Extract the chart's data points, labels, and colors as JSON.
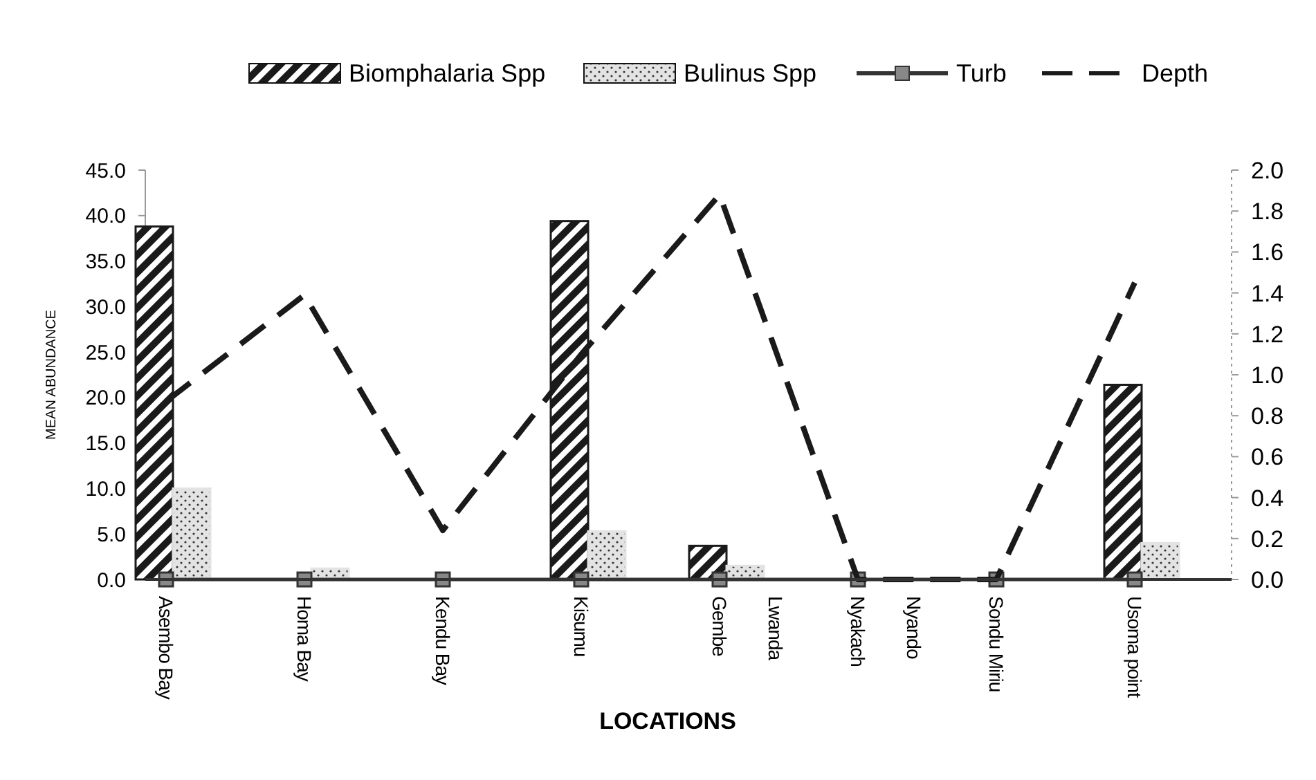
{
  "chart_data": {
    "type": "bar",
    "xlabel": "LOCATIONS",
    "ylabel": "MEAN ABUNDANCE",
    "categories": [
      "Asembo Bay",
      "Homa Bay",
      "Kendu Bay",
      "Kisumu",
      "Gembe\nLwanda",
      "Nyakach\nNyando",
      "Sondu Miriu",
      "Usoma point"
    ],
    "series": [
      {
        "name": "Biomphalaria Spp",
        "color": "#1a1a1a",
        "values": [
          38.8,
          0,
          0,
          39.4,
          3.7,
          0,
          0,
          21.4
        ]
      },
      {
        "name": "Bulinus Spp",
        "color": "#e3e3e3",
        "values": [
          10.0,
          1.2,
          0,
          5.3,
          1.5,
          0,
          0,
          4.0
        ]
      },
      {
        "name": "Turb",
        "type": "line",
        "axis": "y2",
        "color": "#333333",
        "marker": "square",
        "line_style": "solid",
        "values": [
          0,
          0,
          0,
          0,
          0,
          0,
          0,
          0
        ]
      },
      {
        "name": "Depth",
        "type": "line",
        "axis": "y2",
        "color": "#1a1a1a",
        "marker": "none",
        "line_style": "dashed",
        "values": [
          0.87,
          1.39,
          0.24,
          1.1,
          1.88,
          0,
          0,
          1.45
        ]
      }
    ],
    "ylim": [
      0,
      45
    ],
    "yticks": [
      {
        "value": 0,
        "label": "0.0"
      },
      {
        "value": 5,
        "label": "5.0"
      },
      {
        "value": 10,
        "label": "10.0"
      },
      {
        "value": 15,
        "label": "15.0"
      },
      {
        "value": 20,
        "label": "20.0"
      },
      {
        "value": 25,
        "label": "25.0"
      },
      {
        "value": 30,
        "label": "30.0"
      },
      {
        "value": 35,
        "label": "35.0"
      },
      {
        "value": 40,
        "label": "40.0"
      },
      {
        "value": 45,
        "label": "45.0"
      }
    ],
    "y2lim": [
      0,
      2
    ],
    "y2ticks": [
      {
        "value": 0,
        "label": "0.0"
      },
      {
        "value": 0.2,
        "label": "0.2"
      },
      {
        "value": 0.4,
        "label": "0.4"
      },
      {
        "value": 0.6,
        "label": "0.6"
      },
      {
        "value": 0.8,
        "label": "0.8"
      },
      {
        "value": 1,
        "label": "1.0"
      },
      {
        "value": 1.2,
        "label": "1.2"
      },
      {
        "value": 1.4,
        "label": "1.4"
      },
      {
        "value": 1.6,
        "label": "1.6"
      },
      {
        "value": 1.8,
        "label": "1.8"
      },
      {
        "value": 2,
        "label": "2.0"
      }
    ],
    "grid": false,
    "legend": "top"
  }
}
